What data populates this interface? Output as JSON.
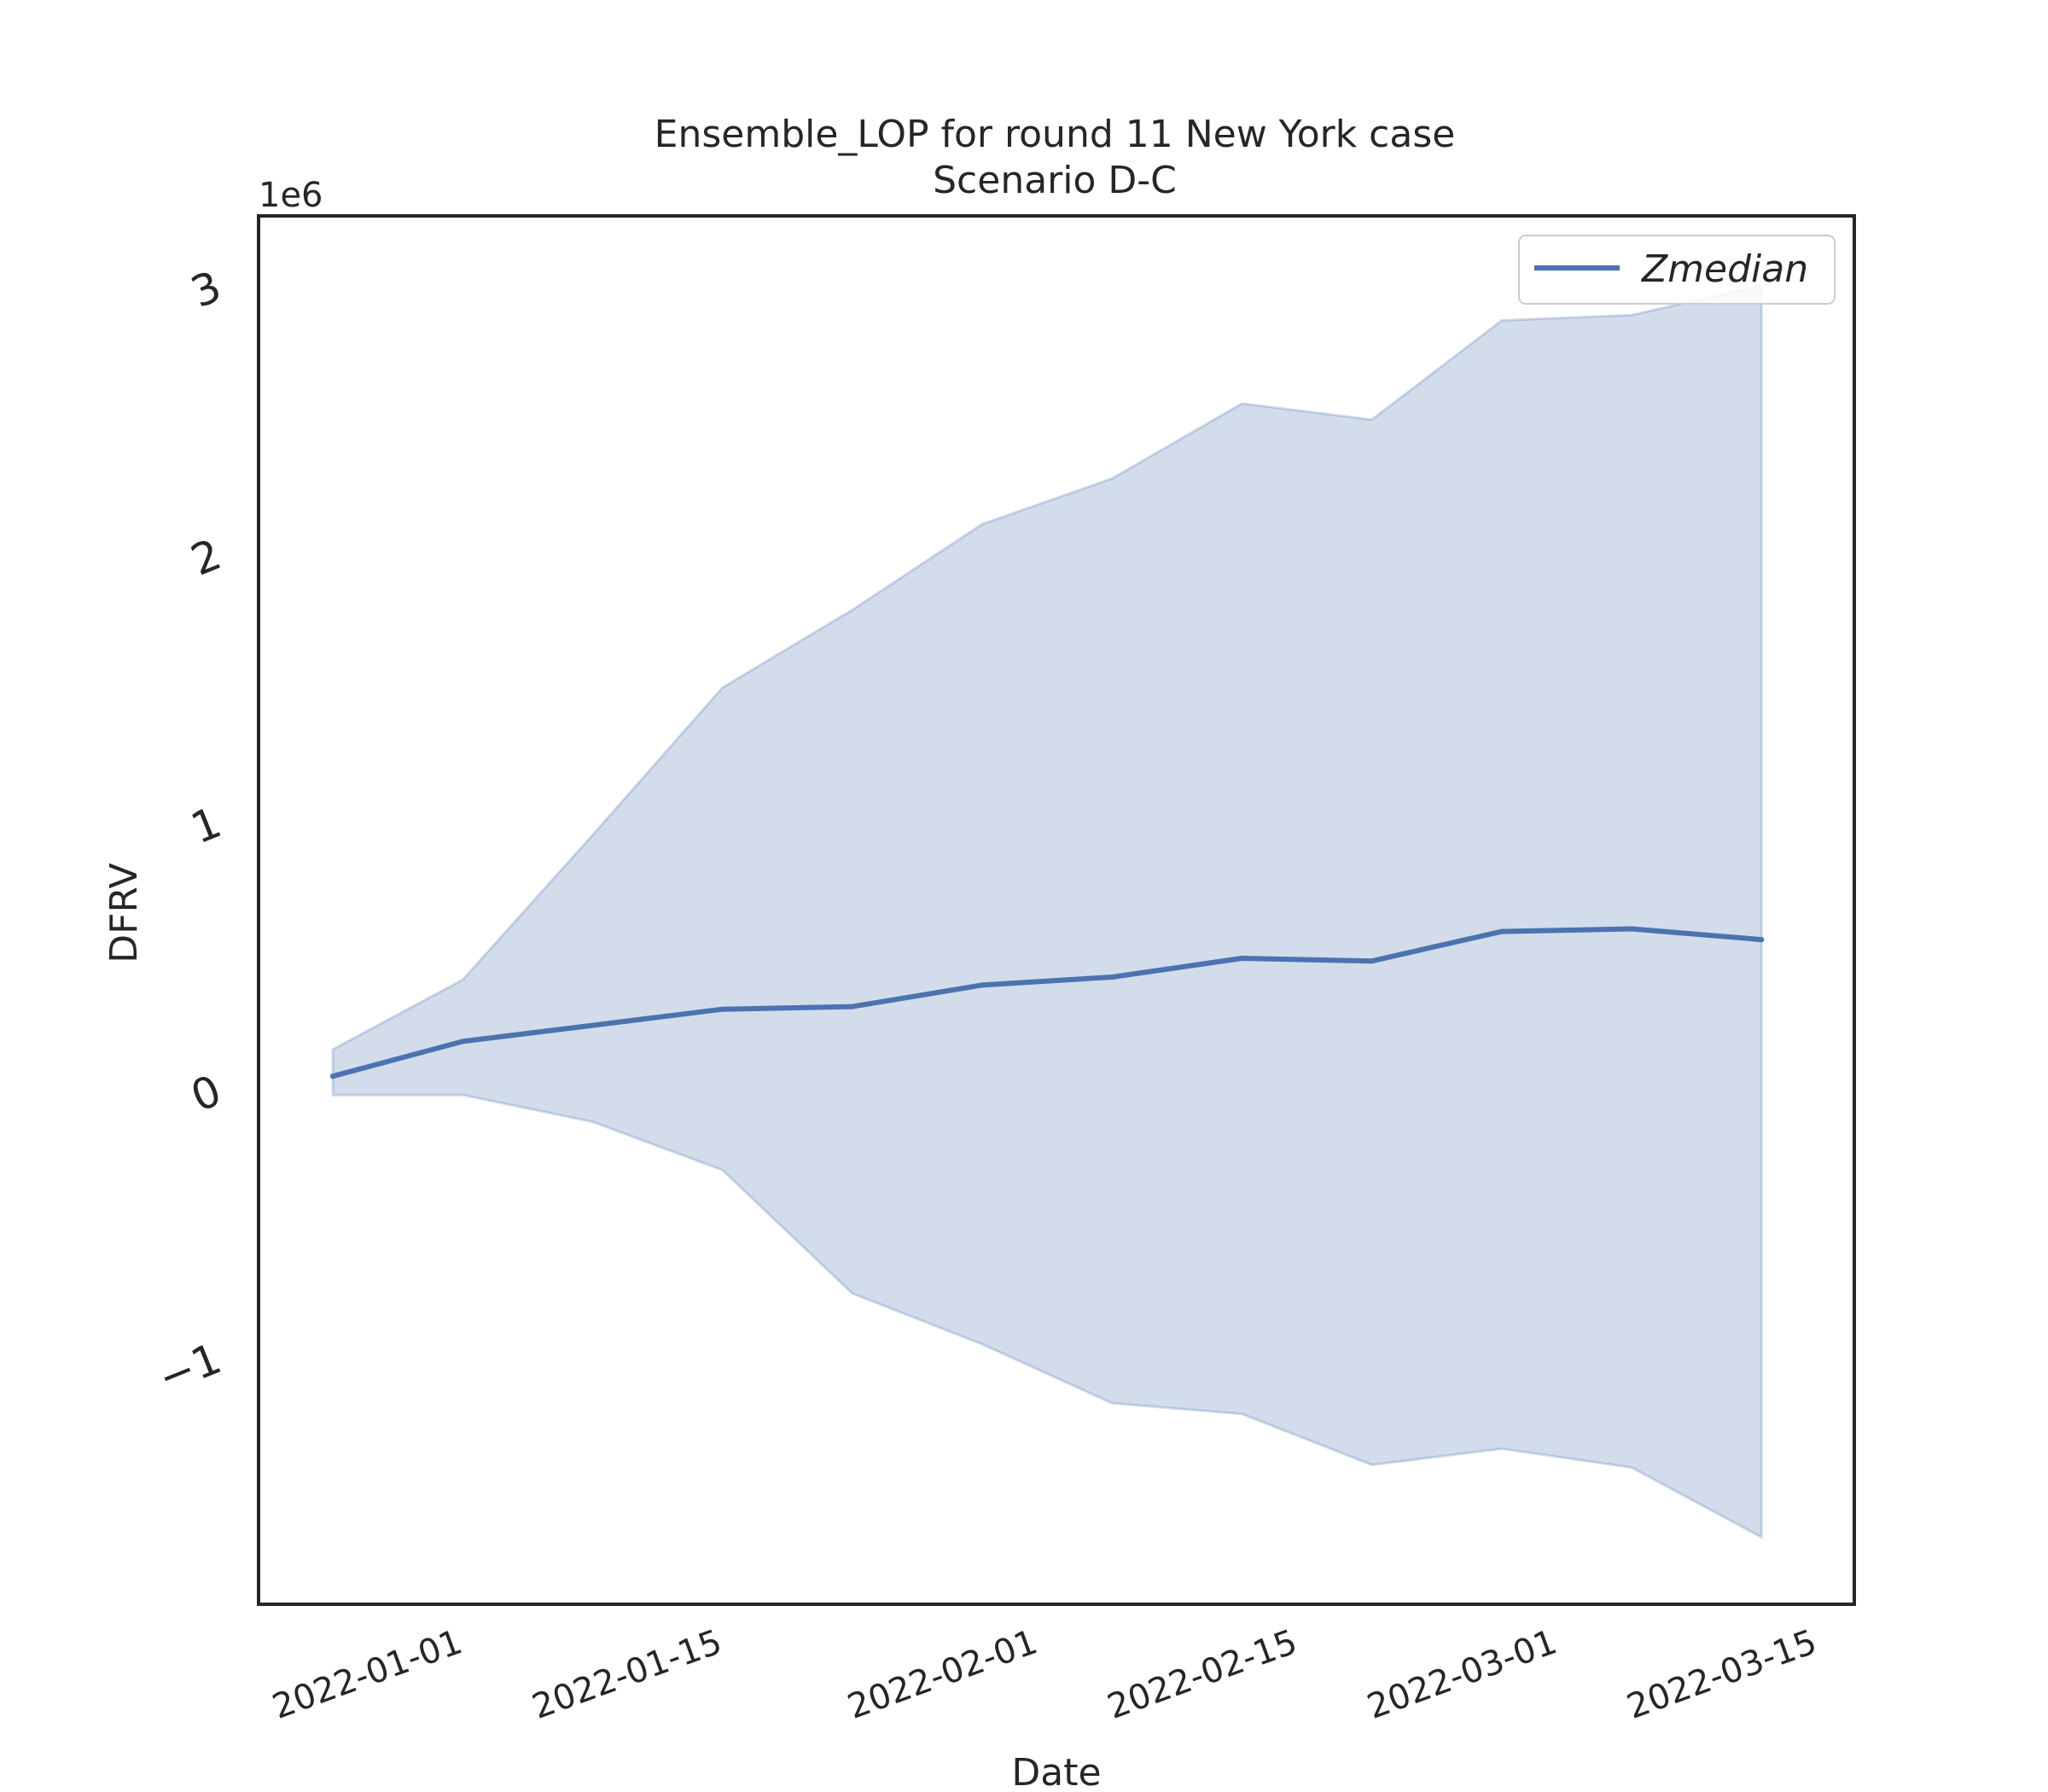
{
  "chart_data": {
    "type": "line",
    "title": "Ensemble_LOP for round 11 New York case",
    "subtitle": "Scenario D-C",
    "xlabel": "Date",
    "ylabel": "DFRV",
    "y_offset_label": "1e6",
    "x": [
      "2021-12-25",
      "2022-01-01",
      "2022-01-08",
      "2022-01-15",
      "2022-01-22",
      "2022-01-29",
      "2022-02-05",
      "2022-02-12",
      "2022-02-19",
      "2022-02-26",
      "2022-03-05",
      "2022-03-12"
    ],
    "xlim": [
      "2021-12-21",
      "2022-03-17"
    ],
    "ylim": [
      -1.9,
      3.28
    ],
    "xtick_labels": [
      "2022-01-01",
      "2022-01-15",
      "2022-02-01",
      "2022-02-15",
      "2022-03-01",
      "2022-03-15"
    ],
    "ytick_values": [
      -1,
      0,
      1,
      2,
      3
    ],
    "ytick_labels": [
      "−1",
      "0",
      "1",
      "2",
      "3"
    ],
    "series": [
      {
        "name": "Zmedian",
        "color": "#4c72b0",
        "values": [
          0.07,
          0.2,
          0.26,
          0.32,
          0.33,
          0.41,
          0.44,
          0.51,
          0.5,
          0.61,
          0.62,
          0.58
        ]
      }
    ],
    "band": {
      "color": "#4c72b0",
      "lower": [
        0.0,
        0.0,
        -0.1,
        -0.28,
        -0.74,
        -0.93,
        -1.15,
        -1.19,
        -1.38,
        -1.32,
        -1.39,
        -1.65
      ],
      "upper": [
        0.17,
        0.43,
        0.97,
        1.52,
        1.81,
        2.13,
        2.3,
        2.58,
        2.52,
        2.89,
        2.91,
        3.02
      ]
    },
    "grid": false,
    "legend": "top-right"
  }
}
